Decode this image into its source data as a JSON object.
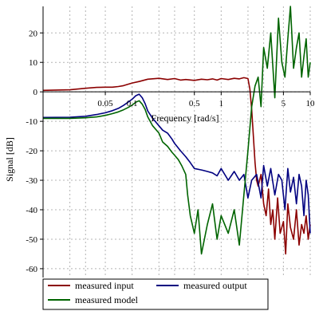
{
  "chart_data": {
    "type": "line",
    "title": "",
    "xlabel": "Frequency [rad/s]",
    "ylabel": "Signal [dB]",
    "xscale": "log",
    "xlim": [
      0.01,
      10
    ],
    "ylim": [
      -63,
      29
    ],
    "grid": true,
    "legend_position": "bottom",
    "x_ticks": [
      0.05,
      0.1,
      0.5,
      1,
      5,
      10
    ],
    "x_tick_labels": [
      "0.05",
      "0.1",
      "0.5",
      "1",
      "5",
      "10"
    ],
    "y_ticks": [
      20,
      10,
      0,
      -10,
      -20,
      -30,
      -40,
      -50,
      -60
    ],
    "y_tick_labels": [
      "20",
      "10",
      "0",
      "-10",
      "-20",
      "-30",
      "-40",
      "-50",
      "-60"
    ],
    "series": [
      {
        "name": "measured input",
        "color": "#8b0000",
        "x": [
          0.01,
          0.02,
          0.03,
          0.04,
          0.05,
          0.06,
          0.07,
          0.08,
          0.09,
          0.1,
          0.12,
          0.15,
          0.2,
          0.25,
          0.3,
          0.35,
          0.4,
          0.5,
          0.6,
          0.7,
          0.8,
          0.9,
          1.0,
          1.2,
          1.4,
          1.6,
          1.8,
          2.0,
          2.1,
          2.2,
          2.3,
          2.4,
          2.5,
          2.6,
          2.8,
          3.0,
          3.2,
          3.4,
          3.6,
          3.8,
          4.0,
          4.3,
          4.6,
          5.0,
          5.3,
          5.6,
          6.0,
          6.5,
          7.0,
          7.5,
          8.0,
          8.5,
          9.0,
          9.5,
          10.0
        ],
        "y": [
          0.5,
          0.7,
          1.2,
          1.5,
          1.6,
          1.6,
          1.8,
          2.1,
          2.6,
          3.0,
          3.5,
          4.3,
          4.6,
          4.2,
          4.5,
          4.0,
          4.2,
          3.9,
          4.3,
          4.1,
          4.4,
          4.0,
          4.5,
          4.2,
          4.6,
          4.4,
          4.8,
          4.5,
          1.0,
          -6.0,
          -15.0,
          -24.0,
          -30.0,
          -32.0,
          -28.0,
          -38.0,
          -42.0,
          -33.0,
          -45.0,
          -40.0,
          -50.0,
          -36.0,
          -48.0,
          -44.0,
          -55.0,
          -38.0,
          -46.0,
          -50.0,
          -40.0,
          -52.0,
          -45.0,
          -48.0,
          -42.0,
          -50.0,
          -45.0
        ]
      },
      {
        "name": "measured output",
        "color": "#000080",
        "x": [
          0.01,
          0.02,
          0.03,
          0.04,
          0.05,
          0.06,
          0.07,
          0.08,
          0.09,
          0.1,
          0.11,
          0.12,
          0.13,
          0.14,
          0.15,
          0.17,
          0.2,
          0.22,
          0.25,
          0.28,
          0.3,
          0.35,
          0.4,
          0.45,
          0.5,
          0.6,
          0.7,
          0.8,
          0.9,
          1.0,
          1.2,
          1.4,
          1.6,
          1.8,
          2.0,
          2.2,
          2.5,
          2.8,
          3.0,
          3.3,
          3.6,
          4.0,
          4.4,
          4.8,
          5.2,
          5.6,
          6.0,
          6.5,
          7.0,
          7.5,
          8.0,
          8.5,
          9.0,
          9.5,
          10.0
        ],
        "y": [
          -8.7,
          -8.6,
          -8.3,
          -7.7,
          -7.1,
          -6.4,
          -5.6,
          -4.6,
          -3.5,
          -2.5,
          -1.3,
          -0.8,
          -2.0,
          -4.0,
          -6.5,
          -9.0,
          -11.5,
          -13.0,
          -14.0,
          -16.0,
          -17.5,
          -20.0,
          -22.0,
          -24.0,
          -26.0,
          -26.5,
          -27.0,
          -27.5,
          -28.5,
          -26.0,
          -30.0,
          -27.0,
          -30.0,
          -28.0,
          -36.0,
          -30.0,
          -28.0,
          -36.0,
          -25.0,
          -32.0,
          -26.0,
          -35.0,
          -28.0,
          -30.0,
          -40.0,
          -26.0,
          -34.0,
          -29.0,
          -38.0,
          -28.0,
          -32.0,
          -42.0,
          -30.0,
          -35.0,
          -48.0
        ]
      },
      {
        "name": "measured model",
        "color": "#006400",
        "x": [
          0.01,
          0.02,
          0.03,
          0.04,
          0.05,
          0.06,
          0.07,
          0.08,
          0.09,
          0.1,
          0.11,
          0.12,
          0.13,
          0.14,
          0.15,
          0.17,
          0.2,
          0.22,
          0.25,
          0.28,
          0.3,
          0.33,
          0.36,
          0.4,
          0.42,
          0.45,
          0.5,
          0.55,
          0.6,
          0.7,
          0.8,
          0.9,
          1.0,
          1.2,
          1.4,
          1.6,
          1.8,
          2.0,
          2.2,
          2.4,
          2.6,
          2.8,
          3.0,
          3.3,
          3.6,
          4.0,
          4.4,
          4.8,
          5.2,
          5.6,
          6.0,
          6.5,
          7.0,
          7.5,
          8.0,
          8.5,
          9.0,
          9.5,
          10.0
        ],
        "y": [
          -9.0,
          -9.0,
          -8.8,
          -8.5,
          -8.0,
          -7.4,
          -6.8,
          -6.1,
          -5.3,
          -4.5,
          -3.5,
          -3.0,
          -4.2,
          -6.0,
          -8.5,
          -11.5,
          -14.0,
          -17.0,
          -18.5,
          -20.5,
          -21.5,
          -23.0,
          -25.0,
          -28.0,
          -35.0,
          -42.0,
          -48.0,
          -40.0,
          -55.0,
          -45.0,
          -38.0,
          -50.0,
          -42.0,
          -48.0,
          -40.0,
          -52.0,
          -35.0,
          -20.0,
          -5.0,
          2.0,
          5.0,
          -5.0,
          15.0,
          8.0,
          20.0,
          -2.0,
          25.0,
          10.0,
          5.0,
          18.0,
          29.0,
          8.0,
          15.0,
          20.0,
          5.0,
          12.0,
          18.0,
          5.0,
          10.0
        ]
      }
    ]
  }
}
